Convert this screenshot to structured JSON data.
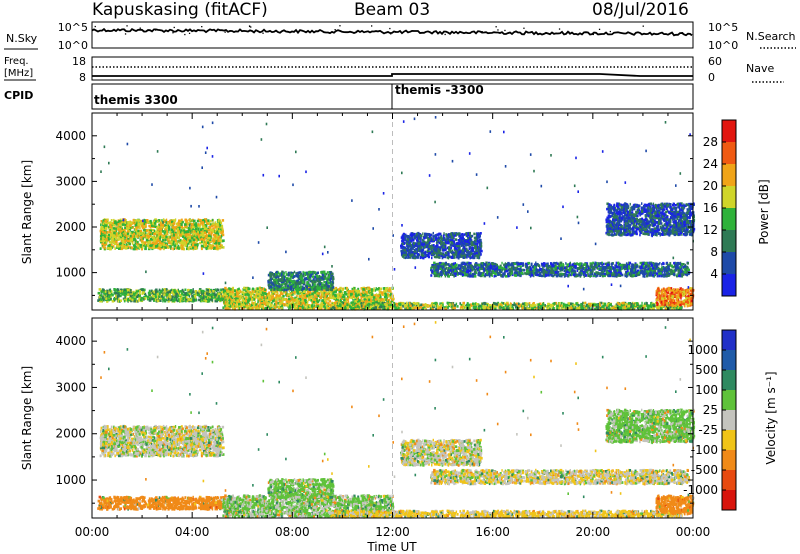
{
  "header": {
    "station": "Kapuskasing (fitACF)",
    "beam": "Beam 03",
    "date": "08/Jul/2016"
  },
  "noise_panel": {
    "left_label": "N.Sky",
    "right_label": "N.Search",
    "left_ticks": [
      "10^5",
      "10^0"
    ],
    "right_ticks": [
      "10^5",
      "10^0"
    ]
  },
  "freq_panel": {
    "left_label": "Freq.",
    "left_unit": "[MHz]",
    "right_label": "Nave",
    "left_ticks": [
      "18",
      "8"
    ],
    "right_ticks": [
      "60",
      "0"
    ]
  },
  "cpid": {
    "label": "CPID",
    "segments": [
      "themis 3300",
      "themis -3300"
    ]
  },
  "x_axis": {
    "label": "Time UT",
    "ticks": [
      "00:00",
      "04:00",
      "08:00",
      "12:00",
      "16:00",
      "20:00",
      "00:00"
    ]
  },
  "power_panel": {
    "ylabel": "Slant Range [km]",
    "yticks": [
      "1000",
      "2000",
      "3000",
      "4000"
    ],
    "colorbar_label": "Power [dB]",
    "colorbar_ticks": [
      "4",
      "8",
      "12",
      "16",
      "20",
      "24",
      "28"
    ],
    "colors": [
      "#1a23e6",
      "#1e4aa8",
      "#2f7a55",
      "#2fb23a",
      "#cfd52a",
      "#f0a418",
      "#f05a12",
      "#e2160f"
    ]
  },
  "velocity_panel": {
    "ylabel": "Slant Range [km]",
    "yticks": [
      "1000",
      "2000",
      "3000",
      "4000"
    ],
    "colorbar_label": "Velocity [m s⁻¹]",
    "colorbar_ticks": [
      "1000",
      "500",
      "100",
      "25",
      "-25",
      "-100",
      "-500",
      "-1000"
    ],
    "colors": [
      "#2130c8",
      "#1f5ba8",
      "#2f8a60",
      "#5fc23a",
      "#c4c4be",
      "#f0c418",
      "#f08a18",
      "#e84a10",
      "#d8140c"
    ]
  },
  "chart_data": {
    "type": "heatmap",
    "x_unit": "hours UT",
    "xlim": [
      0,
      24
    ],
    "ylim": [
      180,
      4500
    ],
    "channel_change_ut": 12,
    "echo_regions": [
      {
        "name": "early-band",
        "t": [
          0.3,
          5.2
        ],
        "range_km": [
          1500,
          2150
        ],
        "power_db": 18,
        "velocity": 0
      },
      {
        "name": "early-near",
        "t": [
          0.2,
          5.5
        ],
        "range_km": [
          350,
          620
        ],
        "power_db": 14,
        "velocity": -200
      },
      {
        "name": "morning-near",
        "t": [
          5.2,
          12
        ],
        "range_km": [
          180,
          650
        ],
        "power_db": 18,
        "velocity": 40
      },
      {
        "name": "morning-mid",
        "t": [
          7.0,
          9.6
        ],
        "range_km": [
          600,
          1000
        ],
        "power_db": 10,
        "velocity": 50
      },
      {
        "name": "noon-near",
        "t": [
          9.5,
          23.5
        ],
        "range_km": [
          180,
          320
        ],
        "power_db": 16,
        "velocity": -40
      },
      {
        "name": "afternoon-band",
        "t": [
          13.5,
          23.8
        ],
        "range_km": [
          900,
          1200
        ],
        "power_db": 8,
        "velocity": -10
      },
      {
        "name": "afternoon-arc",
        "t": [
          12.3,
          15.5
        ],
        "range_km": [
          1300,
          1850
        ],
        "power_db": 6,
        "velocity": 0
      },
      {
        "name": "late-near",
        "t": [
          22.5,
          24
        ],
        "range_km": [
          250,
          650
        ],
        "power_db": 24,
        "velocity": -300
      },
      {
        "name": "late-high",
        "t": [
          20.5,
          24
        ],
        "range_km": [
          1800,
          2500
        ],
        "power_db": 6,
        "velocity": 50
      }
    ]
  }
}
